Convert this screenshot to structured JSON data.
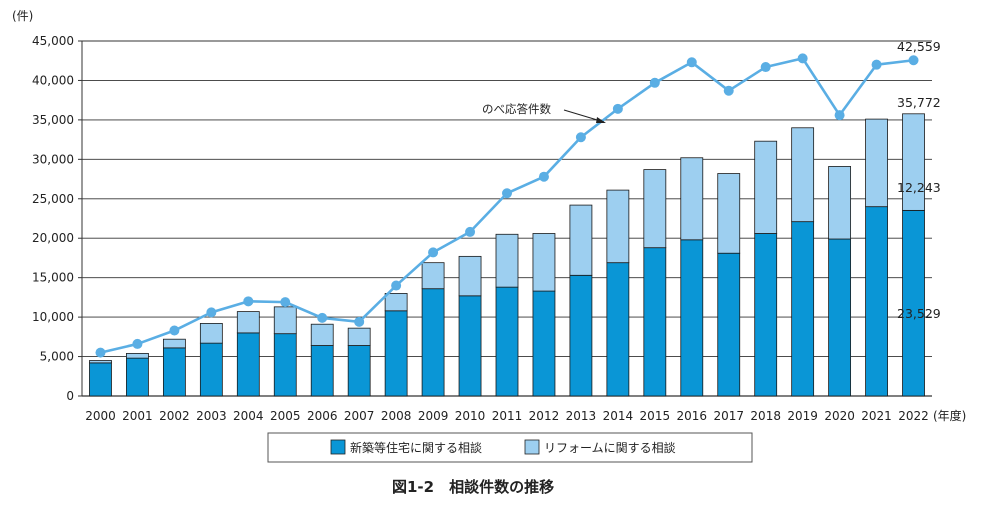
{
  "chart_data": {
    "type": "bar",
    "title": "図1-2　相談件数の推移",
    "y_unit": "(件)",
    "x_unit": "(年度)",
    "ylim": [
      0,
      45000
    ],
    "yticks": [
      "0",
      "5,000",
      "10,000",
      "15,000",
      "20,000",
      "25,000",
      "30,000",
      "35,000",
      "40,000",
      "45,000"
    ],
    "grid": true,
    "legend_position": "bottom",
    "categories": [
      "2000",
      "2001",
      "2002",
      "2003",
      "2004",
      "2005",
      "2006",
      "2007",
      "2008",
      "2009",
      "2010",
      "2011",
      "2012",
      "2013",
      "2014",
      "2015",
      "2016",
      "2017",
      "2018",
      "2019",
      "2020",
      "2021",
      "2022"
    ],
    "series": [
      {
        "name": "新築等住宅に関する相談",
        "kind": "stacked-bar",
        "color": "#0a96d6",
        "values": [
          4200,
          4800,
          6100,
          6700,
          8000,
          7900,
          6400,
          6400,
          10800,
          13600,
          12700,
          13800,
          13300,
          15300,
          16900,
          18800,
          19800,
          18100,
          20600,
          22100,
          19900,
          24000,
          23529
        ]
      },
      {
        "name": "リフォームに関する相談",
        "kind": "stacked-bar",
        "color": "#9dcff0",
        "values": [
          300,
          600,
          1100,
          2500,
          2700,
          3400,
          2700,
          2200,
          2200,
          3300,
          5000,
          6700,
          7300,
          8900,
          9200,
          9900,
          10400,
          10100,
          11700,
          11900,
          9200,
          11100,
          12243
        ]
      },
      {
        "name": "のべ応答件数",
        "kind": "line",
        "color": "#5aaee4",
        "values": [
          5500,
          6600,
          8300,
          10600,
          12000,
          11900,
          9900,
          9400,
          14000,
          18200,
          20800,
          25700,
          27800,
          32800,
          36400,
          39700,
          42300,
          38700,
          41700,
          42800,
          35600,
          42000,
          42559
        ]
      }
    ],
    "data_labels": {
      "line_last": "42,559",
      "total_last": "35,772",
      "reform_last": "12,243",
      "new_last": "23,529"
    },
    "annotation": "のべ応答件数"
  }
}
